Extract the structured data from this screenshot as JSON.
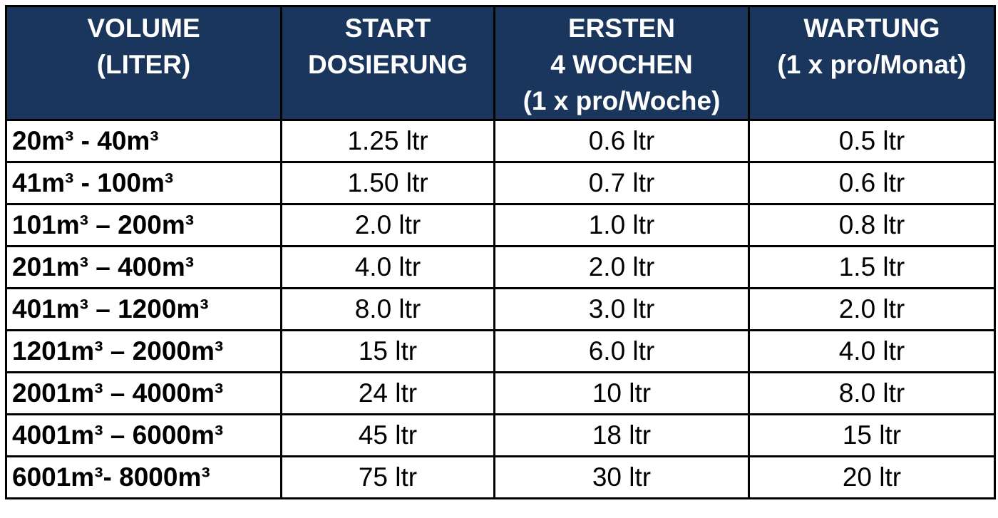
{
  "table": {
    "headers": [
      [
        "VOLUME",
        "(LITER)"
      ],
      [
        "START",
        "DOSIERUNG"
      ],
      [
        "ERSTEN",
        "4 WOCHEN",
        "(1 x pro/Woche)"
      ],
      [
        "WARTUNG",
        "(1 x pro/Monat)"
      ]
    ],
    "rows": [
      [
        "20m³ - 40m³",
        "1.25 ltr",
        "0.6 ltr",
        "0.5 ltr"
      ],
      [
        "41m³ - 100m³",
        "1.50 ltr",
        "0.7 ltr",
        "0.6 ltr"
      ],
      [
        "101m³ – 200m³",
        "2.0 ltr",
        "1.0 ltr",
        "0.8 ltr"
      ],
      [
        "201m³ – 400m³",
        "4.0 ltr",
        "2.0 ltr",
        "1.5 ltr"
      ],
      [
        "401m³ – 1200m³",
        "8.0 ltr",
        "3.0 ltr",
        "2.0 ltr"
      ],
      [
        "1201m³ – 2000m³",
        "15 ltr",
        "6.0 ltr",
        "4.0 ltr"
      ],
      [
        "2001m³ – 4000m³",
        "24 ltr",
        "10 ltr",
        "8.0 ltr"
      ],
      [
        "4001m³ – 6000m³",
        "45 ltr",
        "18 ltr",
        "15 ltr"
      ],
      [
        "6001m³- 8000m³",
        "75 ltr",
        "30 ltr",
        "20 ltr"
      ]
    ]
  }
}
